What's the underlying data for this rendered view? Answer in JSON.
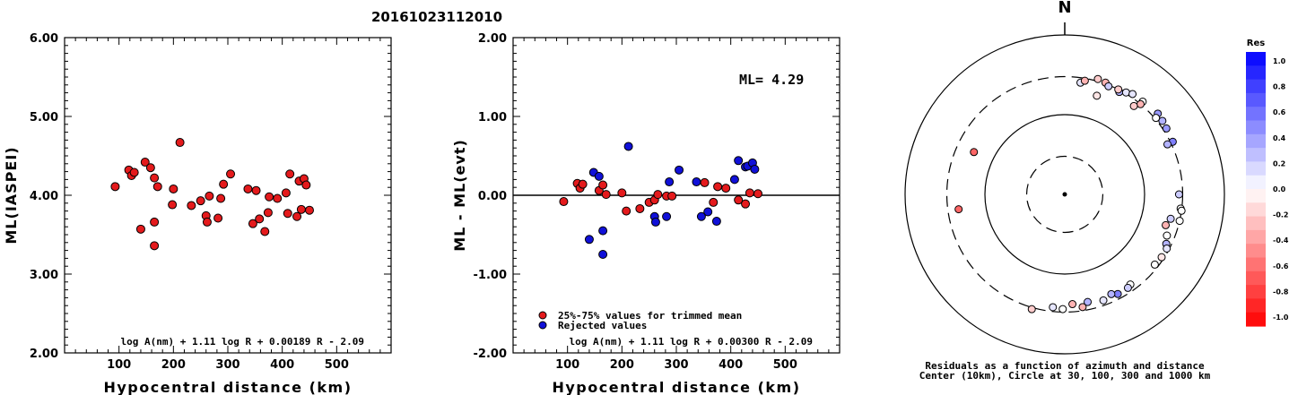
{
  "event_id": "20161023112010",
  "chart_data": [
    {
      "type": "scatter",
      "ylabel": "ML(IASPEI)",
      "xlabel": "Hypocentral distance (km)",
      "xlim": [
        0,
        600
      ],
      "ylim": [
        2.0,
        6.0
      ],
      "xticks": [
        "100",
        "200",
        "300",
        "400",
        "500"
      ],
      "yticks": [
        "2.00",
        "3.00",
        "4.00",
        "5.00",
        "6.00"
      ],
      "formula": "log A(nm) + 1.11 log R + 0.00189 R - 2.09",
      "series": [
        {
          "color": "#e41a1c",
          "points": [
            [
              93,
              4.11
            ],
            [
              118,
              4.32
            ],
            [
              123,
              4.25
            ],
            [
              128,
              4.29
            ],
            [
              140,
              3.57
            ],
            [
              148,
              4.42
            ],
            [
              158,
              4.35
            ],
            [
              165,
              3.36
            ],
            [
              165,
              3.66
            ],
            [
              165,
              4.22
            ],
            [
              171,
              4.11
            ],
            [
              198,
              3.88
            ],
            [
              200,
              4.08
            ],
            [
              212,
              4.67
            ],
            [
              233,
              3.87
            ],
            [
              250,
              3.93
            ],
            [
              260,
              3.74
            ],
            [
              262,
              3.66
            ],
            [
              266,
              3.99
            ],
            [
              282,
              3.71
            ],
            [
              287,
              3.96
            ],
            [
              292,
              4.14
            ],
            [
              305,
              4.27
            ],
            [
              337,
              4.08
            ],
            [
              346,
              3.64
            ],
            [
              352,
              4.06
            ],
            [
              358,
              3.7
            ],
            [
              368,
              3.54
            ],
            [
              374,
              3.78
            ],
            [
              376,
              3.98
            ],
            [
              391,
              3.96
            ],
            [
              407,
              4.03
            ],
            [
              410,
              3.77
            ],
            [
              414,
              4.27
            ],
            [
              427,
              3.73
            ],
            [
              431,
              4.18
            ],
            [
              435,
              3.82
            ],
            [
              440,
              4.21
            ],
            [
              444,
              4.13
            ],
            [
              450,
              3.81
            ]
          ]
        }
      ]
    },
    {
      "type": "scatter",
      "ylabel": "ML - ML(evt)",
      "xlabel": "Hypocentral distance (km)",
      "xlim": [
        0,
        600
      ],
      "ylim": [
        -2.0,
        2.0
      ],
      "xticks": [
        "100",
        "200",
        "300",
        "400",
        "500"
      ],
      "yticks": [
        "-2.00",
        "-1.00",
        "0.00",
        "1.00",
        "2.00"
      ],
      "annotation": "ML=  4.29",
      "formula": "log A(nm) + 1.11 log R + 0.00300 R - 2.09",
      "legend": [
        "25%-75% values for trimmed mean",
        "Rejected values"
      ],
      "series": [
        {
          "name": "25%-75% values for trimmed mean",
          "color": "#e41a1c",
          "points": [
            [
              93,
              -0.08
            ],
            [
              118,
              0.15
            ],
            [
              123,
              0.09
            ],
            [
              128,
              0.14
            ],
            [
              158,
              0.06
            ],
            [
              165,
              0.13
            ],
            [
              171,
              0.01
            ],
            [
              200,
              0.03
            ],
            [
              208,
              -0.2
            ],
            [
              233,
              -0.17
            ],
            [
              250,
              -0.09
            ],
            [
              260,
              -0.06
            ],
            [
              266,
              0.01
            ],
            [
              282,
              -0.01
            ],
            [
              292,
              -0.01
            ],
            [
              352,
              0.16
            ],
            [
              368,
              -0.09
            ],
            [
              376,
              0.11
            ],
            [
              391,
              0.09
            ],
            [
              414,
              -0.06
            ],
            [
              427,
              -0.11
            ],
            [
              435,
              0.03
            ],
            [
              450,
              0.02
            ]
          ]
        },
        {
          "name": "Rejected values",
          "color": "#1010d8",
          "points": [
            [
              140,
              -0.56
            ],
            [
              148,
              0.29
            ],
            [
              158,
              0.24
            ],
            [
              165,
              -0.75
            ],
            [
              165,
              -0.45
            ],
            [
              212,
              0.62
            ],
            [
              260,
              -0.27
            ],
            [
              262,
              -0.34
            ],
            [
              282,
              -0.27
            ],
            [
              287,
              0.17
            ],
            [
              305,
              0.32
            ],
            [
              337,
              0.17
            ],
            [
              346,
              -0.27
            ],
            [
              358,
              -0.21
            ],
            [
              374,
              -0.33
            ],
            [
              407,
              0.2
            ],
            [
              414,
              0.44
            ],
            [
              427,
              0.36
            ],
            [
              431,
              0.37
            ],
            [
              440,
              0.41
            ],
            [
              444,
              0.33
            ]
          ]
        }
      ]
    },
    {
      "type": "scatter",
      "subtype": "polar",
      "north_label": "N",
      "caption_line1": "Residuals as a function of azimuth and distance",
      "caption_line2": "Center (10km), Circle at 30, 100, 300 and 1000 km",
      "rings_km": [
        30,
        100,
        300,
        1000
      ],
      "points_az_dist_res": [
        [
          16,
          320,
          -0.2
        ],
        [
          20,
          310,
          -0.3
        ],
        [
          22,
          290,
          0.2
        ],
        [
          28,
          285,
          0.3
        ],
        [
          27,
          300,
          -0.2
        ],
        [
          31,
          310,
          0.1
        ],
        [
          34,
          330,
          0.1
        ],
        [
          40,
          330,
          0.0
        ],
        [
          40,
          300,
          -0.3
        ],
        [
          38,
          255,
          -0.2
        ],
        [
          49,
          350,
          0.4
        ],
        [
          53,
          340,
          0.3
        ],
        [
          50,
          310,
          0.0
        ],
        [
          57,
          330,
          0.4
        ],
        [
          64,
          320,
          0.5
        ],
        [
          64,
          270,
          0.3
        ],
        [
          8,
          260,
          0.1
        ],
        [
          10,
          280,
          -0.3
        ],
        [
          18,
          200,
          -0.1
        ],
        [
          -65,
          180,
          -0.6
        ],
        [
          -98,
          220,
          -0.6
        ],
        [
          90,
          270,
          0.2
        ],
        [
          97,
          290,
          0.0
        ],
        [
          98,
          300,
          0.0
        ],
        [
          103,
          300,
          0.0
        ],
        [
          103,
          230,
          0.2
        ],
        [
          107,
          210,
          -0.3
        ],
        [
          112,
          240,
          0.0
        ],
        [
          116,
          260,
          0.3
        ],
        [
          118,
          280,
          0.1
        ],
        [
          123,
          280,
          -0.1
        ],
        [
          128,
          270,
          0.0
        ],
        [
          144,
          250,
          0.0
        ],
        [
          146,
          260,
          0.2
        ],
        [
          152,
          260,
          0.5
        ],
        [
          155,
          240,
          0.3
        ],
        [
          160,
          260,
          0.1
        ],
        [
          168,
          240,
          0.3
        ],
        [
          171,
          270,
          -0.3
        ],
        [
          176,
          240,
          -0.3
        ],
        [
          181,
          275,
          0.0
        ],
        [
          186,
          265,
          0.1
        ],
        [
          196,
          315,
          -0.2
        ]
      ]
    },
    {
      "type": "colorbar",
      "title": "Res",
      "ticks": [
        "1.0",
        "0.8",
        "0.6",
        "0.4",
        "0.2",
        "0.0",
        "-0.2",
        "-0.4",
        "-0.6",
        "-0.8",
        "-1.0"
      ],
      "color_positive": "#0000ff",
      "color_negative": "#ff0000"
    }
  ]
}
